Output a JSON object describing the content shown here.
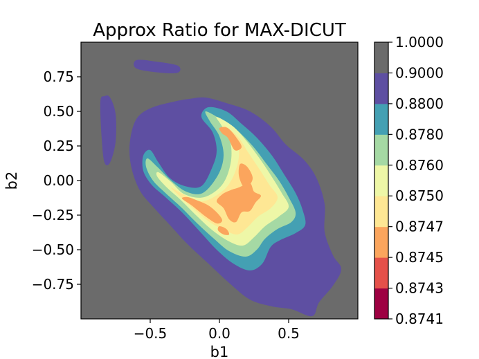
{
  "chart_data": {
    "type": "contourf",
    "title": "Approx Ratio for MAX-DICUT",
    "xlabel": "b1",
    "ylabel": "b2",
    "xlim": [
      -1.0,
      1.0
    ],
    "ylim": [
      -1.0,
      1.0
    ],
    "x_ticks": [
      -0.5,
      0.0,
      0.5
    ],
    "x_tick_labels": [
      "−0.5",
      "0.0",
      "0.5"
    ],
    "y_ticks": [
      0.75,
      0.5,
      0.25,
      0.0,
      -0.25,
      -0.5,
      -0.75
    ],
    "y_tick_labels": [
      "0.75",
      "0.50",
      "0.25",
      "0.00",
      "−0.25",
      "−0.50",
      "−0.75"
    ],
    "grid": false,
    "colorbar": {
      "levels": [
        "0.8741",
        "0.8743",
        "0.8745",
        "0.8747",
        "0.8750",
        "0.8760",
        "0.8780",
        "0.8800",
        "0.9000",
        "1.0000"
      ],
      "colors": [
        "#9e0142",
        "#e5514a",
        "#fba55d",
        "#fee794",
        "#eef7a7",
        "#a5d9a4",
        "#44a0b3",
        "#5e4fa2",
        "#6b6b6b"
      ]
    },
    "regions": [
      {
        "band": "0.9000–1.0000",
        "color": "#6b6b6b",
        "polygons": [
          [
            [
              -1.0,
              -1.0
            ],
            [
              1.0,
              -1.0
            ],
            [
              1.0,
              1.0
            ],
            [
              -1.0,
              1.0
            ]
          ]
        ]
      },
      {
        "band": "0.8800–0.9000",
        "color": "#5e4fa2",
        "polygons": [
          [
            [
              -0.48,
              0.53
            ],
            [
              -0.58,
              0.47
            ],
            [
              -0.63,
              0.37
            ],
            [
              -0.65,
              0.22
            ],
            [
              -0.63,
              0.07
            ],
            [
              -0.57,
              -0.08
            ],
            [
              -0.47,
              -0.2
            ],
            [
              -0.35,
              -0.33
            ],
            [
              -0.23,
              -0.46
            ],
            [
              -0.08,
              -0.6
            ],
            [
              0.07,
              -0.74
            ],
            [
              0.22,
              -0.86
            ],
            [
              0.38,
              -0.91
            ],
            [
              0.52,
              -0.93
            ],
            [
              0.67,
              -0.98
            ],
            [
              0.72,
              -0.88
            ],
            [
              0.82,
              -0.76
            ],
            [
              0.88,
              -0.64
            ],
            [
              0.82,
              -0.54
            ],
            [
              0.76,
              -0.37
            ],
            [
              0.76,
              -0.17
            ],
            [
              0.7,
              0.02
            ],
            [
              0.61,
              0.15
            ],
            [
              0.48,
              0.26
            ],
            [
              0.37,
              0.39
            ],
            [
              0.22,
              0.5
            ],
            [
              0.05,
              0.56
            ],
            [
              -0.1,
              0.6
            ],
            [
              -0.22,
              0.59
            ],
            [
              -0.33,
              0.57
            ]
          ],
          [
            [
              -0.6,
              0.87
            ],
            [
              -0.46,
              0.86
            ],
            [
              -0.3,
              0.83
            ],
            [
              -0.3,
              0.78
            ],
            [
              -0.43,
              0.78
            ],
            [
              -0.6,
              0.81
            ]
          ],
          [
            [
              -0.86,
              0.57
            ],
            [
              -0.83,
              0.61
            ],
            [
              -0.79,
              0.6
            ],
            [
              -0.75,
              0.48
            ],
            [
              -0.75,
              0.28
            ],
            [
              -0.79,
              0.13
            ],
            [
              -0.83,
              0.13
            ],
            [
              -0.85,
              0.3
            ]
          ]
        ]
      },
      {
        "band": "0.8780–0.8800",
        "color": "#44a0b3",
        "polygons": [
          [
            [
              -0.08,
              0.53
            ],
            [
              0.05,
              0.5
            ],
            [
              0.16,
              0.41
            ],
            [
              0.27,
              0.31
            ],
            [
              0.38,
              0.18
            ],
            [
              0.47,
              0.04
            ],
            [
              0.55,
              -0.09
            ],
            [
              0.6,
              -0.21
            ],
            [
              0.62,
              -0.32
            ],
            [
              0.55,
              -0.38
            ],
            [
              0.44,
              -0.43
            ],
            [
              0.37,
              -0.48
            ],
            [
              0.31,
              -0.6
            ],
            [
              0.22,
              -0.65
            ],
            [
              0.1,
              -0.6
            ],
            [
              -0.02,
              -0.5
            ],
            [
              -0.14,
              -0.37
            ],
            [
              -0.27,
              -0.23
            ],
            [
              -0.39,
              -0.12
            ],
            [
              -0.49,
              -0.03
            ],
            [
              -0.55,
              0.07
            ],
            [
              -0.55,
              0.18
            ],
            [
              -0.5,
              0.22
            ],
            [
              -0.44,
              0.13
            ],
            [
              -0.36,
              0.02
            ],
            [
              -0.25,
              -0.04
            ],
            [
              -0.13,
              -0.04
            ],
            [
              -0.05,
              0.1
            ],
            [
              -0.02,
              0.22
            ],
            [
              -0.05,
              0.35
            ],
            [
              -0.13,
              0.46
            ]
          ]
        ]
      },
      {
        "band": "0.8760–0.8780",
        "color": "#a5d9a4",
        "polygons": [
          [
            [
              -0.1,
              0.5
            ],
            [
              0.0,
              0.45
            ],
            [
              0.12,
              0.37
            ],
            [
              0.24,
              0.25
            ],
            [
              0.34,
              0.12
            ],
            [
              0.43,
              0.0
            ],
            [
              0.5,
              -0.12
            ],
            [
              0.55,
              -0.23
            ],
            [
              0.52,
              -0.3
            ],
            [
              0.42,
              -0.35
            ],
            [
              0.33,
              -0.42
            ],
            [
              0.27,
              -0.5
            ],
            [
              0.19,
              -0.55
            ],
            [
              0.07,
              -0.51
            ],
            [
              -0.04,
              -0.42
            ],
            [
              -0.16,
              -0.31
            ],
            [
              -0.28,
              -0.19
            ],
            [
              -0.39,
              -0.09
            ],
            [
              -0.48,
              0.0
            ],
            [
              -0.53,
              0.1
            ],
            [
              -0.52,
              0.16
            ],
            [
              -0.45,
              0.1
            ],
            [
              -0.35,
              0.0
            ],
            [
              -0.24,
              -0.08
            ],
            [
              -0.12,
              -0.09
            ],
            [
              -0.01,
              0.04
            ],
            [
              0.03,
              0.18
            ],
            [
              0.0,
              0.32
            ],
            [
              -0.07,
              0.43
            ]
          ]
        ]
      },
      {
        "band": "0.8750–0.8760",
        "color": "#eef7a7",
        "polygons": [
          [
            [
              -0.02,
              0.46
            ],
            [
              0.1,
              0.39
            ],
            [
              0.2,
              0.28
            ],
            [
              0.29,
              0.16
            ],
            [
              0.37,
              0.04
            ],
            [
              0.45,
              -0.09
            ],
            [
              0.5,
              -0.19
            ],
            [
              0.43,
              -0.26
            ],
            [
              0.33,
              -0.33
            ],
            [
              0.25,
              -0.41
            ],
            [
              0.17,
              -0.47
            ],
            [
              0.07,
              -0.44
            ],
            [
              -0.05,
              -0.36
            ],
            [
              -0.17,
              -0.25
            ],
            [
              -0.28,
              -0.14
            ],
            [
              -0.38,
              -0.05
            ],
            [
              -0.45,
              0.03
            ],
            [
              -0.44,
              0.06
            ],
            [
              -0.35,
              -0.01
            ],
            [
              -0.25,
              -0.1
            ],
            [
              -0.11,
              -0.12
            ],
            [
              0.02,
              -0.03
            ],
            [
              0.08,
              0.12
            ],
            [
              0.08,
              0.27
            ],
            [
              0.02,
              0.39
            ]
          ]
        ]
      },
      {
        "band": "0.8747–0.8750",
        "color": "#fee794",
        "polygons": [
          [
            [
              0.03,
              0.4
            ],
            [
              0.13,
              0.32
            ],
            [
              0.21,
              0.2
            ],
            [
              0.29,
              0.08
            ],
            [
              0.36,
              -0.03
            ],
            [
              0.42,
              -0.12
            ],
            [
              0.37,
              -0.2
            ],
            [
              0.28,
              -0.26
            ],
            [
              0.2,
              -0.34
            ],
            [
              0.13,
              -0.39
            ],
            [
              0.04,
              -0.36
            ],
            [
              -0.07,
              -0.3
            ],
            [
              -0.18,
              -0.21
            ],
            [
              -0.28,
              -0.12
            ],
            [
              -0.35,
              -0.05
            ],
            [
              -0.26,
              -0.1
            ],
            [
              -0.12,
              -0.15
            ],
            [
              0.04,
              -0.06
            ],
            [
              0.12,
              0.08
            ],
            [
              0.14,
              0.22
            ],
            [
              0.09,
              0.33
            ]
          ]
        ]
      },
      {
        "band": "0.8745–0.8747",
        "color": "#fba55d",
        "polygons": [
          [
            [
              0.0,
              0.38
            ],
            [
              0.06,
              0.38
            ],
            [
              0.13,
              0.3
            ],
            [
              0.16,
              0.24
            ],
            [
              0.11,
              0.22
            ],
            [
              0.06,
              0.31
            ],
            [
              0.02,
              0.34
            ]
          ],
          [
            [
              0.15,
              0.12
            ],
            [
              0.2,
              0.1
            ],
            [
              0.24,
              0.02
            ],
            [
              0.21,
              -0.04
            ],
            [
              0.17,
              -0.04
            ],
            [
              0.14,
              0.04
            ]
          ],
          [
            [
              0.14,
              -0.05
            ],
            [
              0.22,
              -0.02
            ],
            [
              0.25,
              -0.08
            ],
            [
              0.3,
              -0.11
            ],
            [
              0.26,
              -0.16
            ],
            [
              0.22,
              -0.22
            ],
            [
              0.16,
              -0.23
            ],
            [
              0.12,
              -0.3
            ],
            [
              0.07,
              -0.28
            ],
            [
              0.03,
              -0.2
            ],
            [
              -0.02,
              -0.15
            ],
            [
              0.02,
              -0.1
            ],
            [
              0.08,
              -0.07
            ]
          ],
          [
            [
              -0.23,
              -0.12
            ],
            [
              -0.17,
              -0.14
            ],
            [
              -0.08,
              -0.18
            ],
            [
              -0.01,
              -0.24
            ],
            [
              0.02,
              -0.29
            ],
            [
              -0.02,
              -0.31
            ],
            [
              -0.1,
              -0.26
            ],
            [
              -0.2,
              -0.18
            ],
            [
              -0.27,
              -0.13
            ]
          ],
          [
            [
              0.0,
              -0.33
            ],
            [
              0.05,
              -0.35
            ],
            [
              0.07,
              -0.39
            ],
            [
              0.03,
              -0.39
            ],
            [
              -0.01,
              -0.36
            ]
          ]
        ]
      }
    ]
  }
}
